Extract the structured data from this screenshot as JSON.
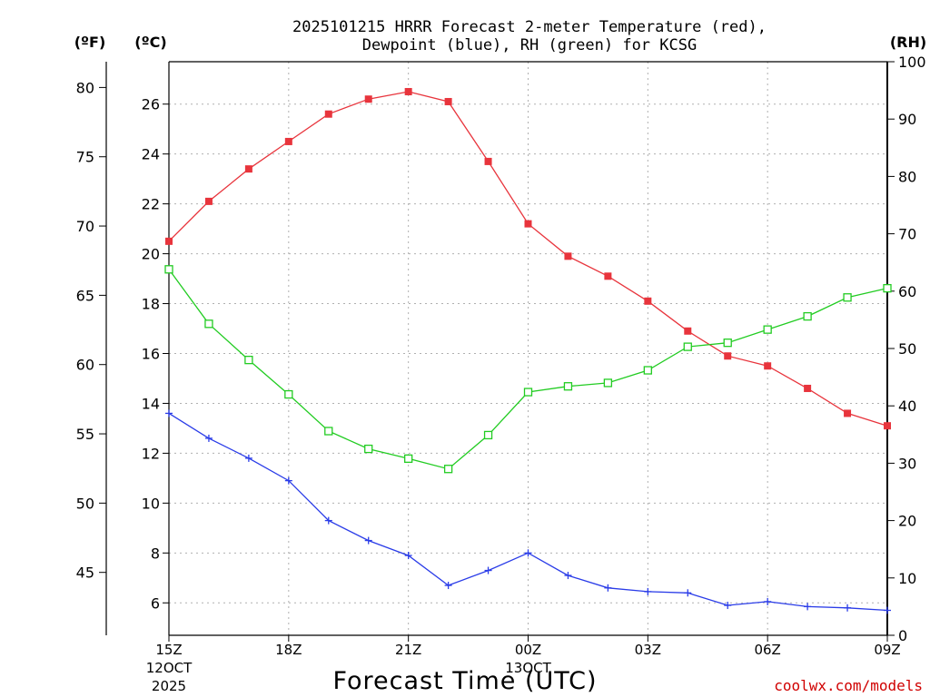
{
  "chart_data": {
    "type": "line",
    "title_line1": "2025101215 HRRR Forecast 2-meter Temperature (red),",
    "title_line2": "Dewpoint (blue), RH (green) for KCSG",
    "units": {
      "fahrenheit": "(ºF)",
      "celsius": "(ºC)",
      "rh": "(RH)"
    },
    "xlabel": "Forecast Time (UTC)",
    "credit": "coolwx.com/models",
    "x_hours": [
      0,
      1,
      2,
      3,
      4,
      5,
      6,
      7,
      8,
      9,
      10,
      11,
      12,
      13,
      14,
      15,
      16,
      17,
      18
    ],
    "x_ticks": [
      {
        "hour": 0,
        "label": "15Z",
        "sub1": "12OCT",
        "sub2": "2025"
      },
      {
        "hour": 3,
        "label": "18Z"
      },
      {
        "hour": 6,
        "label": "21Z"
      },
      {
        "hour": 9,
        "label": "00Z",
        "sub1": "13OCT"
      },
      {
        "hour": 12,
        "label": "03Z"
      },
      {
        "hour": 15,
        "label": "06Z"
      },
      {
        "hour": 18,
        "label": "09Z"
      }
    ],
    "celsius_range": [
      4.7,
      27.7
    ],
    "celsius_ticks": [
      6,
      8,
      10,
      12,
      14,
      16,
      18,
      20,
      22,
      24,
      26
    ],
    "fahrenheit_ticks": [
      45,
      50,
      55,
      60,
      65,
      70,
      75,
      80
    ],
    "rh_range": [
      0,
      100
    ],
    "rh_ticks": [
      0,
      10,
      20,
      30,
      40,
      50,
      60,
      70,
      80,
      90,
      100
    ],
    "series": [
      {
        "name": "Temperature",
        "axis": "celsius",
        "color": "#e8343c",
        "marker": "filled-square",
        "values": [
          20.5,
          22.1,
          23.4,
          24.5,
          25.6,
          26.2,
          26.5,
          26.1,
          23.7,
          21.2,
          19.9,
          19.1,
          18.1,
          16.9,
          15.9,
          15.5,
          14.6,
          13.6,
          13.1
        ]
      },
      {
        "name": "Dewpoint",
        "axis": "celsius",
        "color": "#2a3ce8",
        "marker": "plus",
        "values": [
          13.6,
          12.6,
          11.8,
          10.9,
          9.3,
          8.5,
          7.9,
          6.7,
          7.3,
          8.0,
          7.1,
          6.6,
          6.45,
          6.4,
          5.9,
          6.05,
          5.85,
          5.8,
          5.7
        ]
      },
      {
        "name": "RH",
        "axis": "rh",
        "color": "#22cc22",
        "marker": "open-square",
        "values": [
          63.8,
          54.3,
          48.0,
          42.0,
          35.6,
          32.5,
          30.8,
          29.0,
          34.9,
          42.4,
          43.4,
          44.0,
          46.2,
          50.3,
          51.0,
          53.3,
          55.6,
          58.9,
          60.5
        ]
      }
    ]
  }
}
